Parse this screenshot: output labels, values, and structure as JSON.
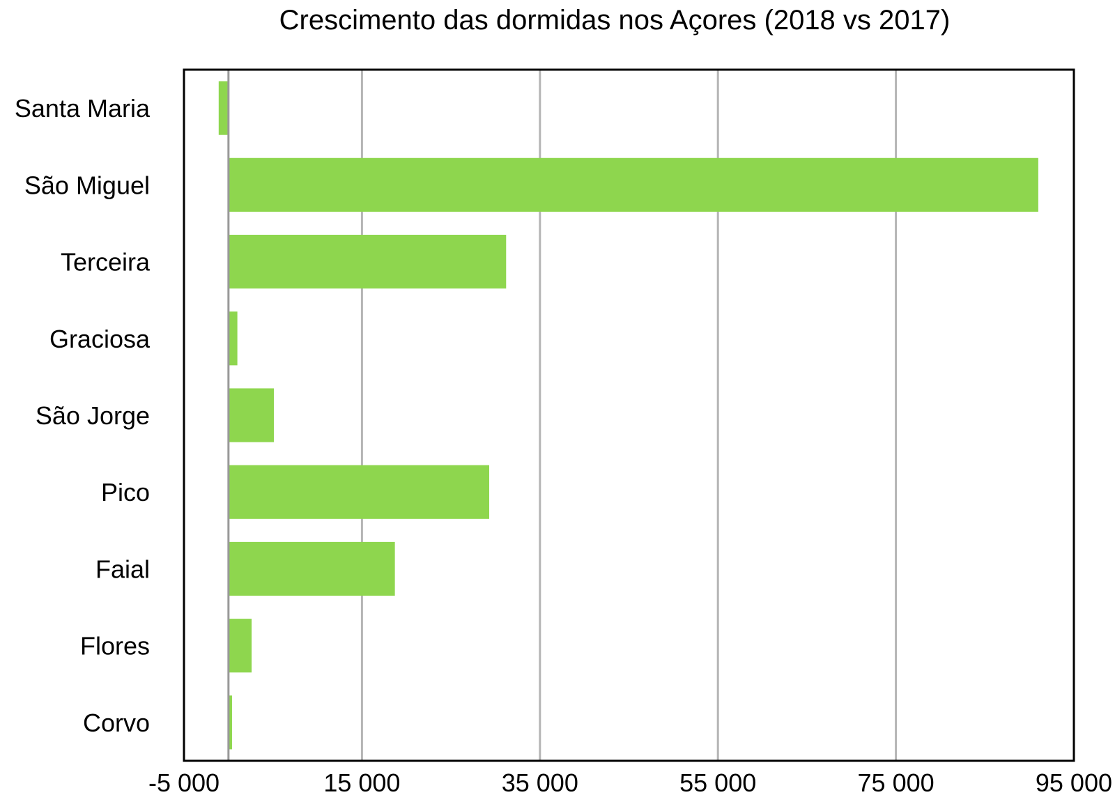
{
  "chart_data": {
    "type": "bar",
    "orientation": "horizontal",
    "title": "Crescimento das dormidas nos Açores (2018 vs 2017)",
    "xlabel": "",
    "ylabel": "",
    "categories": [
      "Santa Maria",
      "São Miguel",
      "Terceira",
      "Graciosa",
      "São Jorge",
      "Pico",
      "Faial",
      "Flores",
      "Corvo"
    ],
    "values": [
      -1100,
      91000,
      31200,
      1000,
      5100,
      29300,
      18700,
      2600,
      400
    ],
    "xlim": [
      -5000,
      95000
    ],
    "xticks": [
      -5000,
      15000,
      35000,
      55000,
      75000,
      95000
    ],
    "xtick_labels": [
      "-5 000",
      "15 000",
      "35 000",
      "55 000",
      "75 000",
      "95 000"
    ],
    "grid": "vertical",
    "legend": "none",
    "colors": {
      "bar": "#8ed64e",
      "grid": "#b5b5b5",
      "frame": "#000000",
      "zero_line": "#999999"
    }
  }
}
